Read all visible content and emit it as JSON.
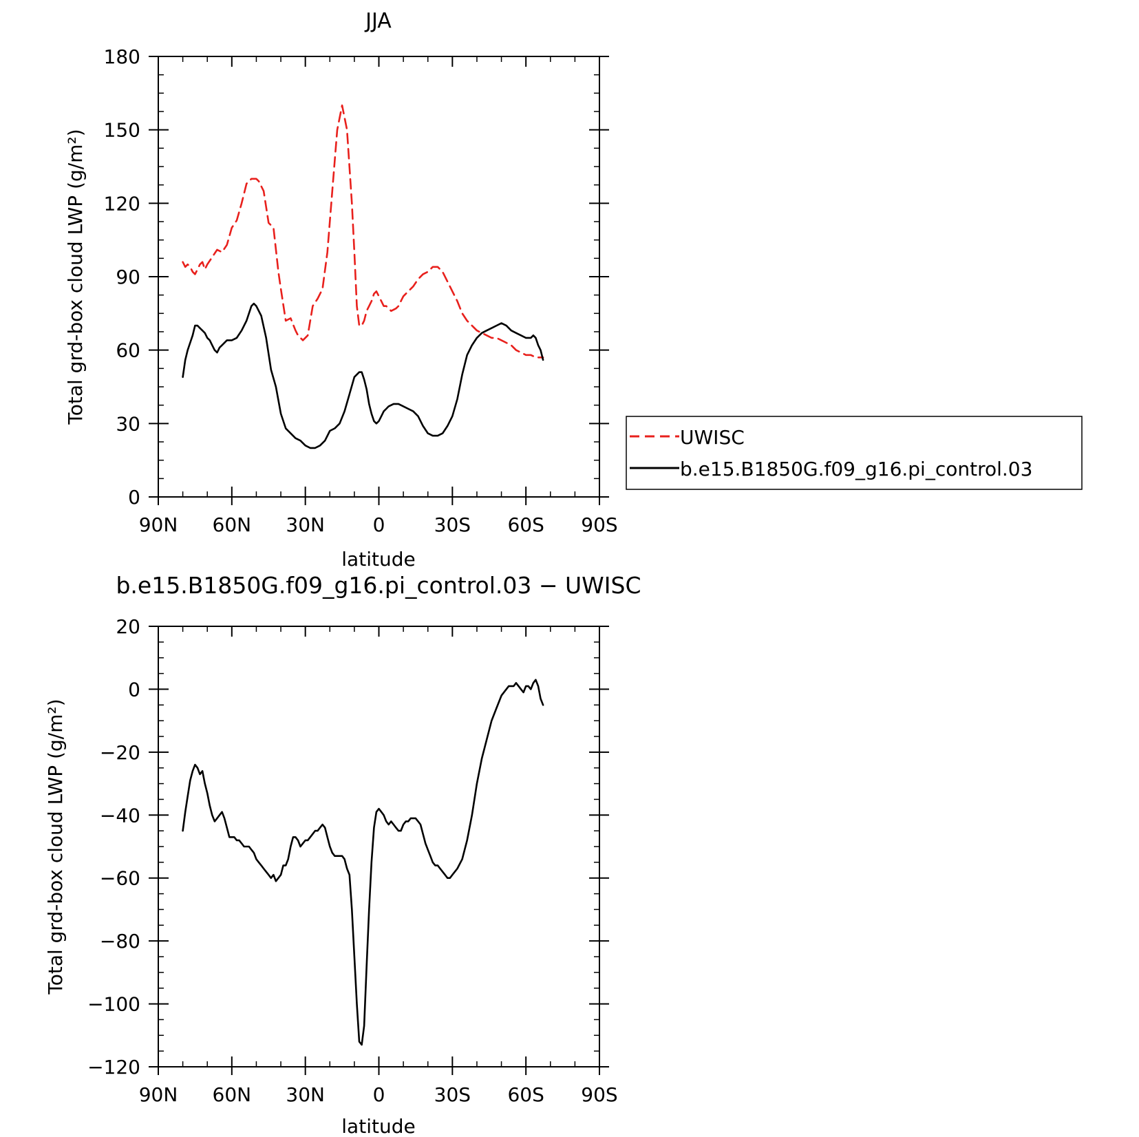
{
  "chart_data": [
    {
      "type": "line",
      "title": "JJA",
      "xlabel": "latitude",
      "ylabel": "Total grd-box cloud LWP (g/m²)",
      "xlim": [
        90,
        -90
      ],
      "ylim": [
        0,
        180
      ],
      "x_ticks": [
        {
          "value": 90,
          "label": "90N"
        },
        {
          "value": 60,
          "label": "60N"
        },
        {
          "value": 30,
          "label": "30N"
        },
        {
          "value": 0,
          "label": "0"
        },
        {
          "value": -30,
          "label": "30S"
        },
        {
          "value": -60,
          "label": "60S"
        },
        {
          "value": -90,
          "label": "90S"
        }
      ],
      "y_ticks": [
        {
          "value": 0,
          "label": "0"
        },
        {
          "value": 30,
          "label": "30"
        },
        {
          "value": 60,
          "label": "60"
        },
        {
          "value": 90,
          "label": "90"
        },
        {
          "value": 120,
          "label": "120"
        },
        {
          "value": 150,
          "label": "150"
        },
        {
          "value": 180,
          "label": "180"
        }
      ],
      "grid": false,
      "legend": {
        "position": "right",
        "entries": [
          {
            "label": "UWISC",
            "color": "#e8201c",
            "style": "dashed"
          },
          {
            "label": "b.e15.B1850G.f09_g16.pi_control.03",
            "color": "#000000",
            "style": "solid"
          }
        ]
      },
      "series": [
        {
          "name": "UWISC",
          "color": "#e8201c",
          "style": "dashed",
          "x": [
            80,
            79,
            78,
            77,
            76,
            75,
            74,
            73,
            72,
            71,
            70,
            68,
            66,
            64,
            62,
            60,
            58,
            56,
            54,
            52,
            51,
            50,
            49,
            47,
            45,
            43,
            41,
            40,
            38,
            36,
            34,
            33,
            31,
            29,
            27,
            25,
            23,
            21,
            19,
            17,
            15,
            13,
            11,
            10,
            9,
            8,
            7,
            6,
            5,
            4,
            3,
            2,
            1,
            0,
            -1,
            -2,
            -3,
            -5,
            -7,
            -8,
            -9,
            -10,
            -12,
            -14,
            -16,
            -18,
            -20,
            -22,
            -24,
            -26,
            -28,
            -30,
            -32,
            -34,
            -36,
            -38,
            -40,
            -42,
            -44,
            -46,
            -48,
            -50,
            -52,
            -54,
            -56,
            -58,
            -60,
            -62,
            -64,
            -65,
            -66,
            -67
          ],
          "values": [
            96,
            94,
            95,
            94,
            92,
            91,
            93,
            95,
            96,
            93,
            95,
            98,
            101,
            100,
            103,
            110,
            113,
            120,
            128,
            130,
            130,
            130,
            129,
            125,
            112,
            110,
            92,
            85,
            72,
            73,
            68,
            66,
            64,
            66,
            78,
            81,
            85,
            100,
            125,
            150,
            160,
            150,
            120,
            100,
            78,
            70,
            70,
            72,
            76,
            78,
            80,
            83,
            84,
            82,
            80,
            78,
            78,
            76,
            77,
            78,
            80,
            82,
            84,
            86,
            89,
            91,
            92,
            94,
            94,
            92,
            88,
            84,
            80,
            75,
            72,
            70,
            68,
            67,
            66,
            65,
            65,
            64,
            63,
            62,
            60,
            59,
            58,
            58,
            57,
            57,
            57,
            57
          ]
        },
        {
          "name": "b.e15.B1850G.f09_g16.pi_control.03",
          "color": "#000000",
          "style": "solid",
          "x": [
            80,
            79,
            78,
            77,
            76,
            75,
            74,
            73,
            72,
            71,
            70,
            69,
            68,
            67,
            66,
            65,
            64,
            62,
            60,
            58,
            56,
            54,
            52,
            51,
            50,
            48,
            46,
            44,
            42,
            40,
            38,
            36,
            34,
            32,
            30,
            28,
            26,
            24,
            22,
            20,
            18,
            16,
            14,
            12,
            10,
            8,
            7,
            6,
            5,
            4,
            3,
            2,
            1,
            0,
            -1,
            -2,
            -3,
            -4,
            -6,
            -8,
            -10,
            -12,
            -14,
            -16,
            -18,
            -20,
            -22,
            -24,
            -26,
            -28,
            -30,
            -32,
            -34,
            -36,
            -38,
            -40,
            -42,
            -44,
            -46,
            -48,
            -50,
            -52,
            -54,
            -56,
            -58,
            -60,
            -62,
            -63,
            -64,
            -65,
            -66,
            -67
          ],
          "values": [
            49,
            56,
            60,
            63,
            66,
            70,
            70,
            69,
            68,
            67,
            65,
            64,
            62,
            60,
            59,
            61,
            62,
            64,
            64,
            65,
            68,
            72,
            78,
            79,
            78,
            74,
            65,
            52,
            45,
            34,
            28,
            26,
            24,
            23,
            21,
            20,
            20,
            21,
            23,
            27,
            28,
            30,
            35,
            42,
            49,
            51,
            51,
            48,
            44,
            38,
            34,
            31,
            30,
            31,
            33,
            35,
            36,
            37,
            38,
            38,
            37,
            36,
            35,
            33,
            29,
            26,
            25,
            25,
            26,
            29,
            33,
            40,
            50,
            58,
            62,
            65,
            67,
            68,
            69,
            70,
            71,
            70,
            68,
            67,
            66,
            65,
            65,
            66,
            65,
            62,
            60,
            56
          ]
        }
      ]
    },
    {
      "type": "line",
      "title": "b.e15.B1850G.f09_g16.pi_control.03 − UWISC",
      "xlabel": "latitude",
      "ylabel": "Total grd-box cloud LWP (g/m²)",
      "xlim": [
        90,
        -90
      ],
      "ylim": [
        -120,
        20
      ],
      "x_ticks": [
        {
          "value": 90,
          "label": "90N"
        },
        {
          "value": 60,
          "label": "60N"
        },
        {
          "value": 30,
          "label": "30N"
        },
        {
          "value": 0,
          "label": "0"
        },
        {
          "value": -30,
          "label": "30S"
        },
        {
          "value": -60,
          "label": "60S"
        },
        {
          "value": -90,
          "label": "90S"
        }
      ],
      "y_ticks": [
        {
          "value": 20,
          "label": "20"
        },
        {
          "value": 0,
          "label": "0"
        },
        {
          "value": -20,
          "label": "−20"
        },
        {
          "value": -40,
          "label": "−40"
        },
        {
          "value": -60,
          "label": "−60"
        },
        {
          "value": -80,
          "label": "−80"
        },
        {
          "value": -100,
          "label": "−100"
        },
        {
          "value": -120,
          "label": "−120"
        }
      ],
      "grid": false,
      "series": [
        {
          "color": "#000000",
          "style": "solid",
          "x": [
            80,
            79,
            78,
            77,
            76,
            75,
            74,
            73,
            72,
            71,
            70,
            69,
            68,
            67,
            66,
            65,
            64,
            63,
            62,
            61,
            60,
            59,
            58,
            57,
            56,
            55,
            54,
            53,
            52,
            51,
            50,
            49,
            48,
            47,
            46,
            45,
            44,
            43,
            42,
            41,
            40,
            39,
            38,
            37,
            36,
            35,
            34,
            33,
            32,
            31,
            30,
            29,
            28,
            27,
            26,
            25,
            24,
            23,
            22,
            21,
            20,
            19,
            18,
            17,
            16,
            15,
            14,
            13,
            12,
            11,
            10,
            9,
            8,
            7,
            6,
            5,
            4,
            3,
            2,
            1,
            0,
            -1,
            -2,
            -3,
            -4,
            -5,
            -6,
            -7,
            -8,
            -9,
            -10,
            -11,
            -12,
            -13,
            -14,
            -15,
            -16,
            -17,
            -18,
            -19,
            -20,
            -21,
            -22,
            -23,
            -24,
            -25,
            -26,
            -27,
            -28,
            -29,
            -30,
            -31,
            -32,
            -34,
            -36,
            -38,
            -40,
            -42,
            -44,
            -46,
            -48,
            -50,
            -52,
            -53,
            -54,
            -55,
            -56,
            -57,
            -58,
            -59,
            -60,
            -61,
            -62,
            -63,
            -64,
            -65,
            -66,
            -67
          ],
          "values": [
            -45,
            -39,
            -34,
            -29,
            -26,
            -24,
            -25,
            -27,
            -26,
            -30,
            -33,
            -37,
            -40,
            -42,
            -41,
            -40,
            -39,
            -41,
            -44,
            -47,
            -47,
            -47,
            -48,
            -48,
            -49,
            -50,
            -50,
            -50,
            -51,
            -52,
            -54,
            -55,
            -56,
            -57,
            -58,
            -59,
            -60,
            -59,
            -61,
            -60,
            -59,
            -56,
            -56,
            -54,
            -50,
            -47,
            -47,
            -48,
            -50,
            -49,
            -48,
            -48,
            -47,
            -46,
            -45,
            -45,
            -44,
            -43,
            -44,
            -47,
            -50,
            -52,
            -53,
            -53,
            -53,
            -53,
            -54,
            -57,
            -59,
            -70,
            -85,
            -100,
            -112,
            -113,
            -107,
            -88,
            -70,
            -55,
            -44,
            -39,
            -38,
            -39,
            -40,
            -42,
            -43,
            -42,
            -43,
            -44,
            -45,
            -45,
            -43,
            -42,
            -42,
            -41,
            -41,
            -41,
            -42,
            -43,
            -46,
            -49,
            -51,
            -53,
            -55,
            -56,
            -56,
            -57,
            -58,
            -59,
            -60,
            -60,
            -59,
            -58,
            -57,
            -54,
            -48,
            -40,
            -30,
            -22,
            -16,
            -10,
            -6,
            -2,
            0,
            1,
            1,
            1,
            2,
            1,
            0,
            -1,
            1,
            1,
            0,
            2,
            3,
            1,
            -3,
            -5
          ]
        }
      ]
    }
  ]
}
